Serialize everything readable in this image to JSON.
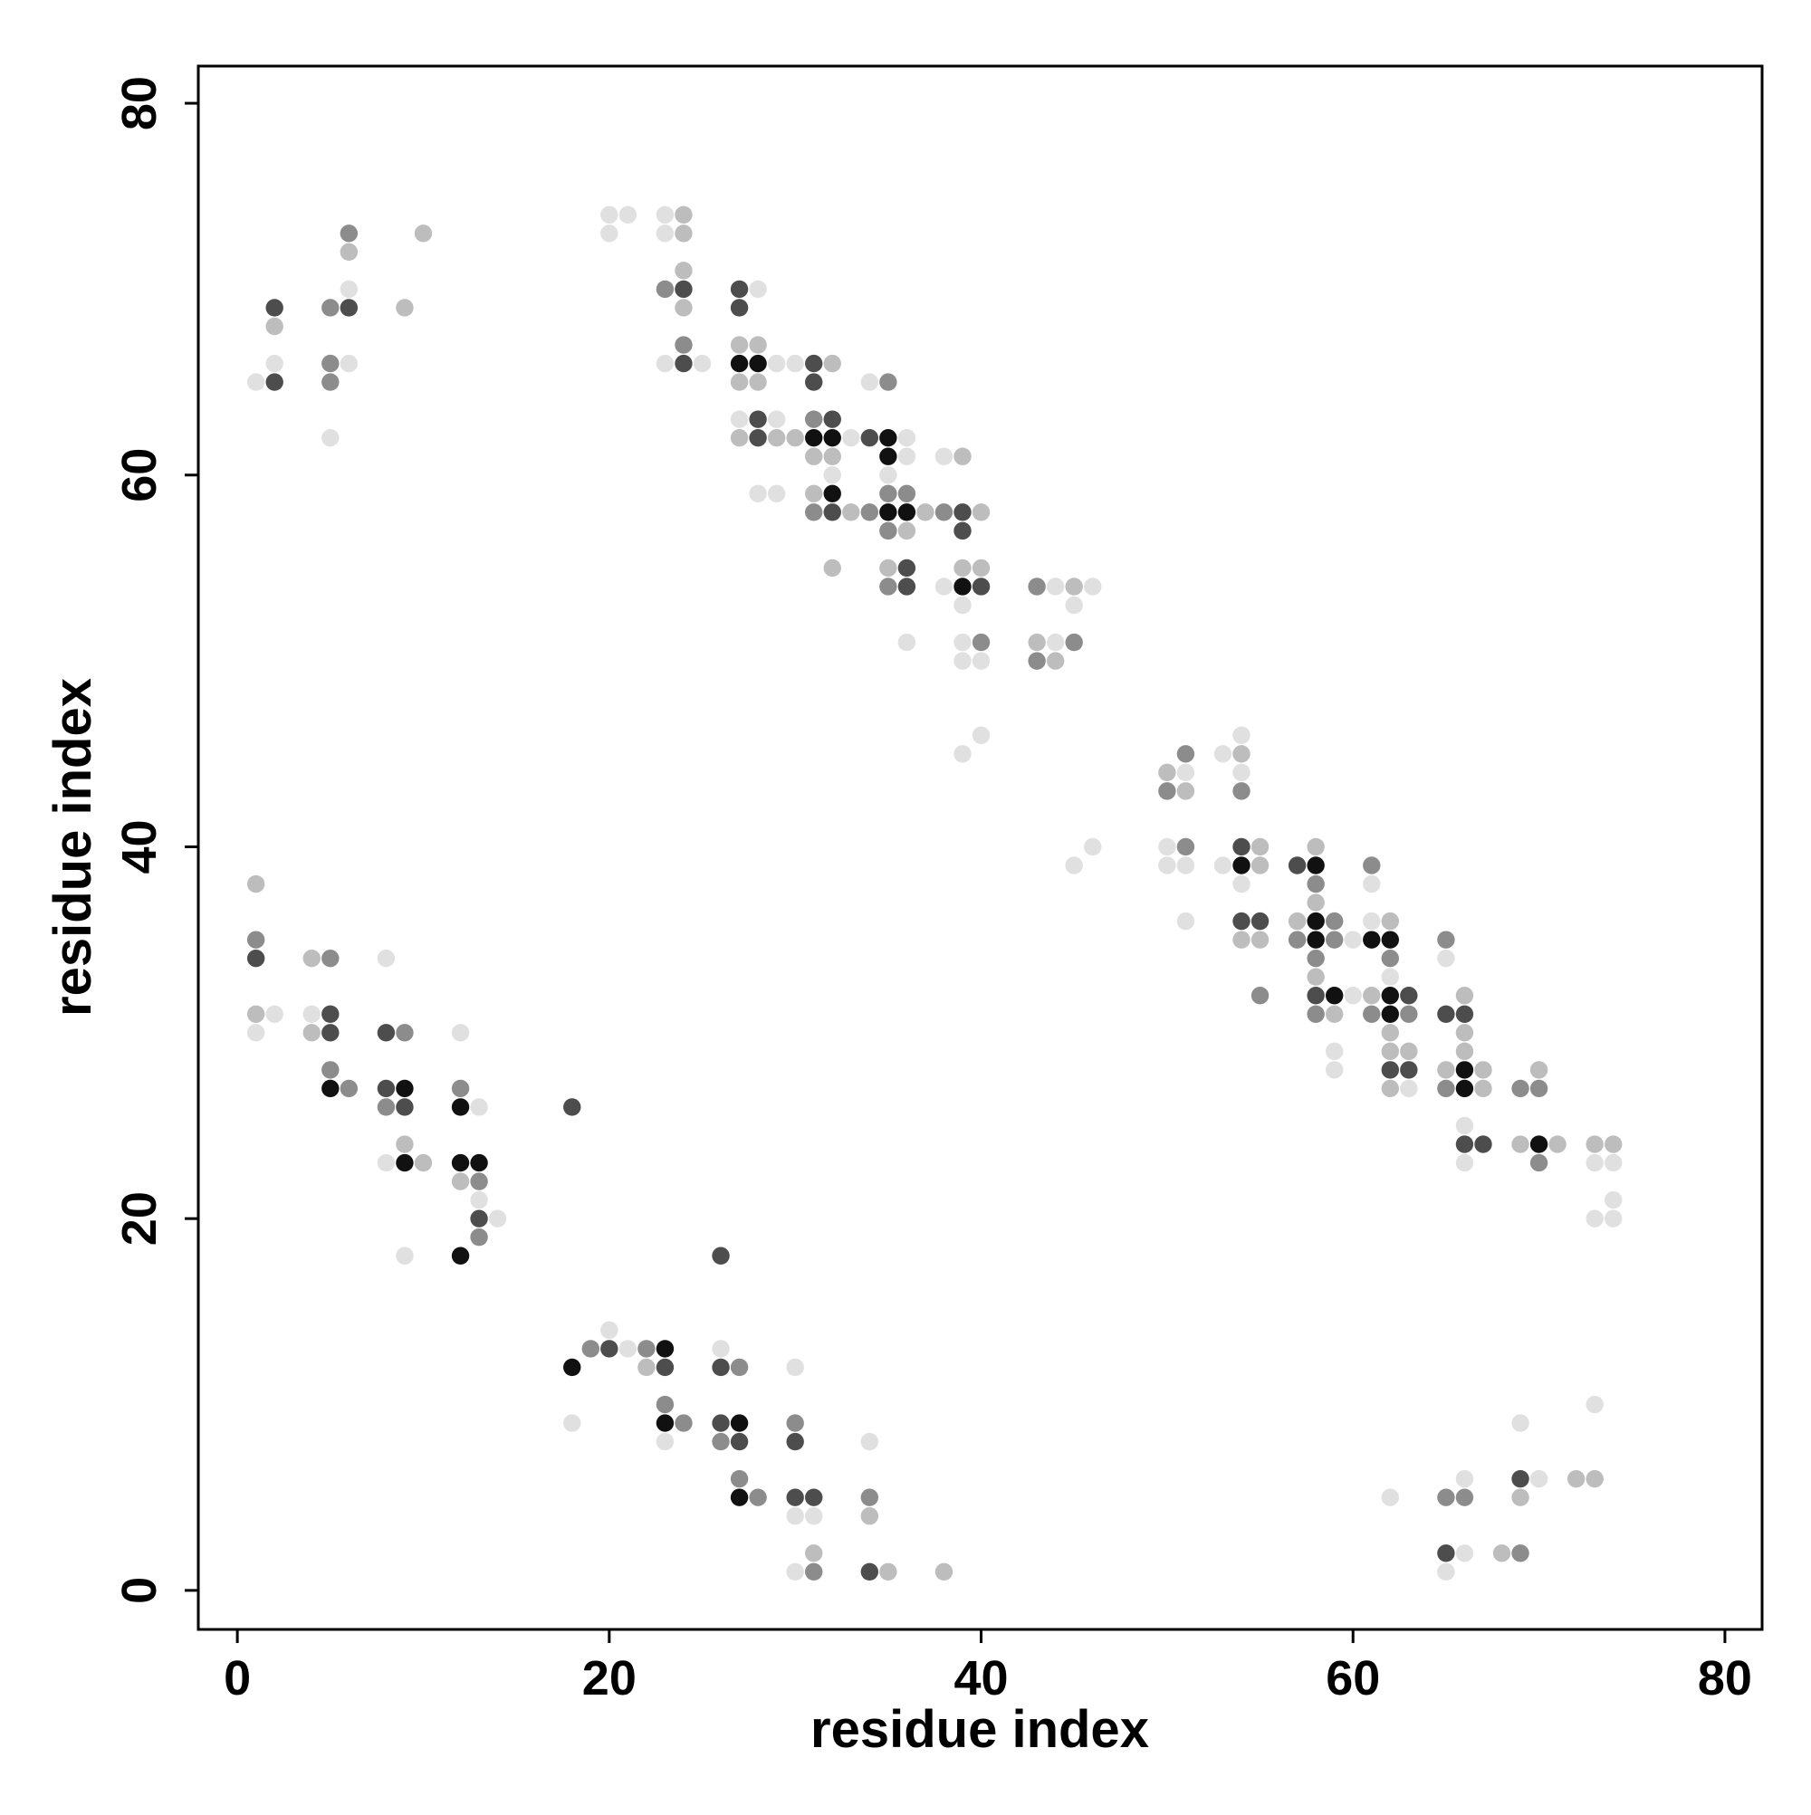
{
  "chart_data": {
    "type": "scatter",
    "xlabel": "residue index",
    "ylabel": "residue index",
    "xlim": [
      -2.1,
      82.0
    ],
    "ylim": [
      -2.1,
      82.0
    ],
    "xticks": [
      0,
      20,
      40,
      60,
      80
    ],
    "yticks": [
      0,
      20,
      40,
      60,
      80
    ],
    "series": [
      {
        "color": "#e0e0e0",
        "x": [
          1,
          2,
          5,
          6,
          6,
          20,
          20,
          21,
          23,
          23,
          23,
          25,
          28,
          29,
          30,
          34,
          27,
          29,
          33,
          32,
          35,
          36,
          36,
          28,
          29,
          38,
          36,
          38,
          39,
          39,
          39,
          40,
          39,
          40,
          44,
          46,
          45,
          44,
          45,
          46,
          51,
          53,
          54,
          54,
          50,
          50,
          51,
          51,
          53,
          54,
          59,
          59,
          60,
          60,
          61,
          61,
          62,
          63,
          65,
          66,
          66,
          73,
          74,
          74,
          73,
          74,
          1,
          2,
          4,
          8,
          12,
          13,
          8,
          13,
          14,
          9,
          18,
          20,
          21,
          23,
          26,
          30,
          30,
          31,
          30,
          34,
          62,
          66,
          66,
          65,
          69,
          70,
          73
        ],
        "y": [
          65,
          66,
          62,
          66,
          70,
          73,
          74,
          74,
          73,
          74,
          66,
          66,
          70,
          66,
          66,
          65,
          63,
          63,
          62,
          60,
          60,
          62,
          61,
          59,
          59,
          61,
          51,
          54,
          53,
          51,
          50,
          50,
          45,
          46,
          54,
          54,
          53,
          51,
          39,
          40,
          44,
          45,
          46,
          44,
          40,
          39,
          39,
          36,
          39,
          38,
          29,
          28,
          35,
          32,
          38,
          36,
          33,
          27,
          34,
          25,
          23,
          23,
          23,
          21,
          20,
          20,
          30,
          31,
          31,
          34,
          30,
          26,
          23,
          21,
          20,
          18,
          9,
          14,
          13,
          8,
          13,
          12,
          4,
          4,
          1,
          8,
          5,
          6,
          2,
          1,
          9,
          6,
          10
        ]
      },
      {
        "color": "#bdbdbd",
        "x": [
          2,
          6,
          9,
          10,
          24,
          24,
          24,
          24,
          27,
          28,
          27,
          28,
          32,
          27,
          29,
          30,
          31,
          32,
          31,
          33,
          32,
          36,
          37,
          40,
          39,
          35,
          39,
          40,
          43,
          44,
          45,
          50,
          51,
          54,
          55,
          55,
          54,
          55,
          58,
          58,
          58,
          57,
          59,
          61,
          62,
          62,
          62,
          62,
          63,
          65,
          66,
          66,
          66,
          67,
          67,
          70,
          69,
          71,
          73,
          74,
          1,
          1,
          4,
          4,
          9,
          10,
          12,
          22,
          31,
          34,
          35,
          38,
          68,
          69,
          72,
          73
        ],
        "y": [
          68,
          72,
          69,
          73,
          73,
          74,
          71,
          69,
          67,
          67,
          65,
          65,
          66,
          62,
          62,
          62,
          61,
          61,
          59,
          58,
          55,
          57,
          58,
          58,
          61,
          55,
          55,
          55,
          51,
          50,
          54,
          44,
          43,
          45,
          40,
          39,
          35,
          35,
          40,
          37,
          33,
          36,
          31,
          32,
          36,
          30,
          29,
          27,
          29,
          28,
          32,
          30,
          29,
          28,
          27,
          28,
          24,
          24,
          24,
          24,
          38,
          31,
          34,
          30,
          24,
          23,
          22,
          12,
          2,
          4,
          1,
          1,
          2,
          5,
          6,
          6
        ]
      },
      {
        "color": "#8c8c8c",
        "x": [
          5,
          5,
          5,
          6,
          23,
          24,
          35,
          31,
          31,
          34,
          38,
          35,
          35,
          36,
          35,
          40,
          43,
          45,
          43,
          50,
          51,
          51,
          54,
          55,
          58,
          58,
          58,
          57,
          59,
          59,
          61,
          61,
          62,
          63,
          65,
          65,
          69,
          70,
          70,
          1,
          5,
          5,
          6,
          9,
          8,
          12,
          13,
          13,
          19,
          22,
          23,
          24,
          27,
          26,
          27,
          28,
          30,
          31,
          34,
          65,
          66,
          69
        ],
        "y": [
          65,
          66,
          69,
          73,
          70,
          67,
          65,
          63,
          58,
          58,
          58,
          59,
          57,
          59,
          54,
          51,
          54,
          51,
          50,
          43,
          45,
          40,
          43,
          32,
          38,
          34,
          31,
          35,
          36,
          35,
          39,
          31,
          34,
          31,
          35,
          27,
          27,
          27,
          23,
          35,
          34,
          28,
          27,
          30,
          26,
          27,
          22,
          19,
          13,
          13,
          10,
          9,
          12,
          8,
          6,
          5,
          9,
          1,
          5,
          5,
          5,
          2
        ]
      },
      {
        "color": "#4d4d4d",
        "x": [
          2,
          2,
          6,
          24,
          24,
          27,
          27,
          31,
          31,
          28,
          28,
          32,
          34,
          32,
          39,
          39,
          36,
          36,
          40,
          54,
          54,
          55,
          57,
          58,
          63,
          63,
          62,
          65,
          66,
          66,
          67,
          1,
          5,
          5,
          8,
          8,
          9,
          13,
          18,
          20,
          23,
          26,
          26,
          26,
          27,
          30,
          30,
          31,
          34,
          65,
          69
        ],
        "y": [
          65,
          69,
          69,
          70,
          66,
          70,
          69,
          66,
          65,
          63,
          62,
          63,
          62,
          58,
          58,
          57,
          55,
          54,
          54,
          40,
          36,
          36,
          39,
          32,
          32,
          28,
          28,
          31,
          31,
          24,
          24,
          34,
          31,
          30,
          30,
          27,
          26,
          20,
          26,
          13,
          12,
          18,
          12,
          9,
          8,
          8,
          5,
          5,
          1,
          2,
          6
        ]
      },
      {
        "color": "#111111",
        "x": [
          27,
          28,
          31,
          32,
          35,
          35,
          35,
          36,
          32,
          39,
          54,
          58,
          58,
          58,
          59,
          61,
          62,
          62,
          62,
          66,
          66,
          70,
          5,
          9,
          12,
          9,
          12,
          13,
          12,
          18,
          23,
          23,
          27,
          27
        ],
        "y": [
          66,
          66,
          62,
          62,
          62,
          61,
          58,
          58,
          59,
          54,
          39,
          39,
          36,
          35,
          32,
          35,
          35,
          32,
          31,
          28,
          27,
          24,
          27,
          27,
          26,
          23,
          23,
          23,
          18,
          12,
          13,
          9,
          9,
          5
        ]
      }
    ]
  }
}
